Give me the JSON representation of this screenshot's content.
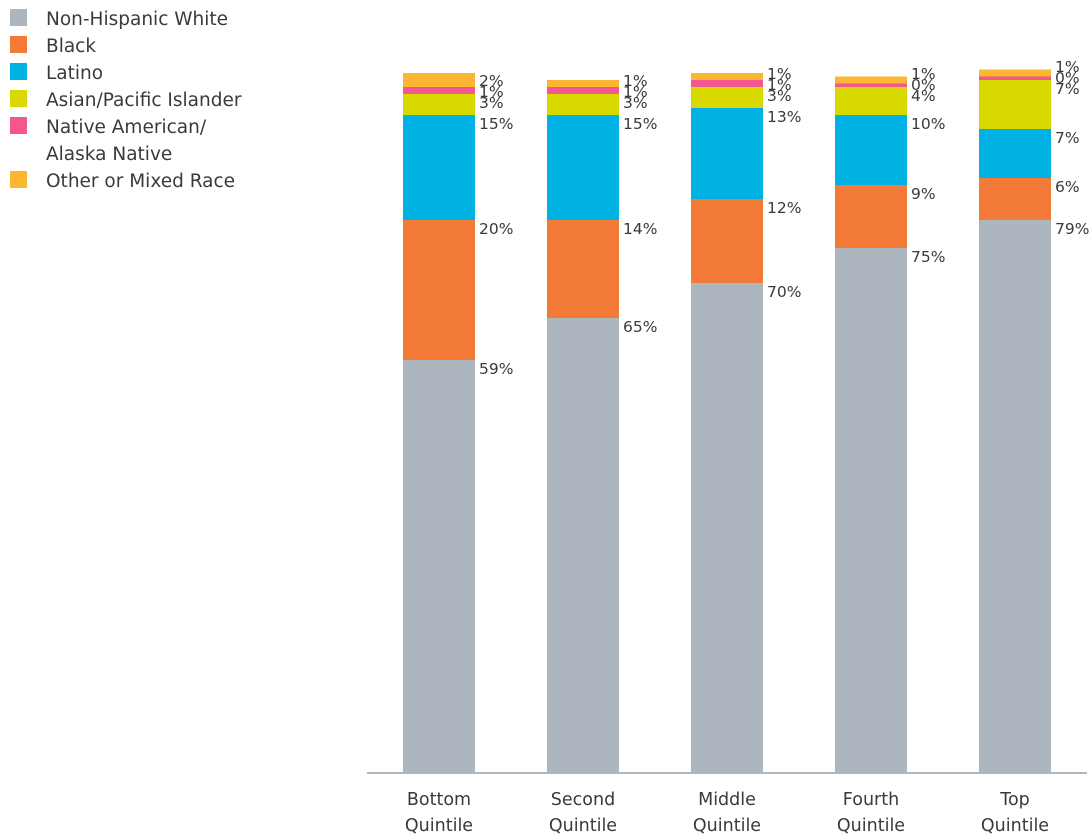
{
  "chart_data": {
    "type": "bar",
    "stacked": true,
    "title": "",
    "xlabel": "",
    "ylabel": "",
    "ylim": [
      0,
      100
    ],
    "grid": false,
    "legend_position": "top-left",
    "categories": [
      "Bottom\nQuintile",
      "Second\nQuintile",
      "Middle\nQuintile",
      "Fourth\nQuintile",
      "Top\nQuintile"
    ],
    "series": [
      {
        "name": "Non-Hispanic White",
        "color": "#adb5bf",
        "values": [
          59,
          65,
          70,
          75,
          79
        ],
        "labels": [
          "59%",
          "65%",
          "70%",
          "75%",
          "79%"
        ]
      },
      {
        "name": "Black",
        "color": "#f47a38",
        "values": [
          20,
          14,
          12,
          9,
          6
        ],
        "labels": [
          "20%",
          "14%",
          "12%",
          "9%",
          "6%"
        ]
      },
      {
        "name": "Latino",
        "color": "#00b2e3",
        "values": [
          15,
          15,
          13,
          10,
          7
        ],
        "labels": [
          "15%",
          "15%",
          "13%",
          "10%",
          "7%"
        ]
      },
      {
        "name": "Asian/Pacific Islander",
        "color": "#d9d800",
        "values": [
          3,
          3,
          3,
          4,
          7
        ],
        "labels": [
          "3%",
          "3%",
          "3%",
          "4%",
          "7%"
        ]
      },
      {
        "name": "Native American/\nAlaska Native",
        "color": "#f4578f",
        "values": [
          1,
          1,
          1,
          0.5,
          0.5
        ],
        "labels": [
          "1%",
          "1%",
          "1%",
          "0%",
          "0%"
        ]
      },
      {
        "name": "Other or Mixed Race",
        "color": "#fbb731",
        "values": [
          2,
          1,
          1,
          1,
          1
        ],
        "labels": [
          "2%",
          "1%",
          "1%",
          "1%",
          "1%"
        ]
      }
    ]
  }
}
